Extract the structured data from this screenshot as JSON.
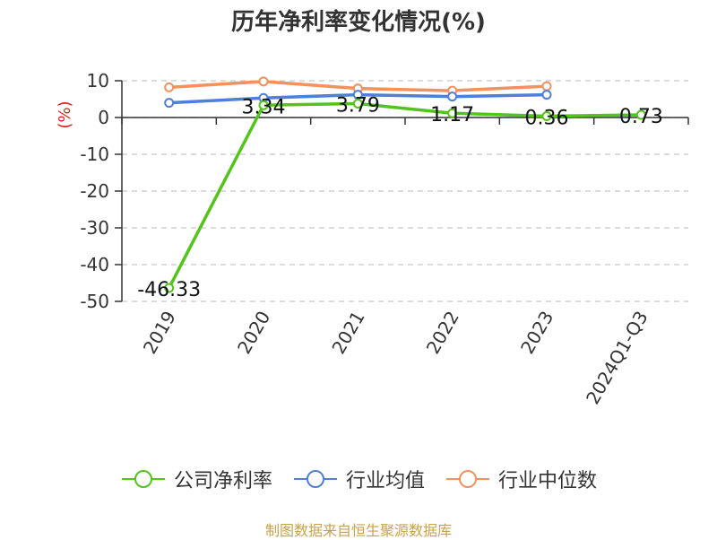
{
  "chart_data": {
    "type": "line",
    "title": "历年净利率变化情况(%)",
    "ylabel": "(%)",
    "categories": [
      "2019",
      "2020",
      "2021",
      "2022",
      "2023",
      "2024Q1-Q3"
    ],
    "yticks": [
      "10",
      "0",
      "-10",
      "-20",
      "-30",
      "-40",
      "-50"
    ],
    "ylim": [
      -50,
      10
    ],
    "grid": true,
    "legend_position": "bottom",
    "series": [
      {
        "name": "公司净利率",
        "color": "#52c41a",
        "values": [
          -46.33,
          3.34,
          3.79,
          1.17,
          0.36,
          0.73
        ],
        "labels": [
          "-46.33",
          "3.34",
          "3.79",
          "1.17",
          "0.36",
          "0.73"
        ]
      },
      {
        "name": "行业均值",
        "color": "#4e7fdc",
        "values": [
          4.0,
          5.3,
          6.2,
          5.7,
          6.2,
          null
        ]
      },
      {
        "name": "行业中位数",
        "color": "#f4915c",
        "values": [
          8.2,
          9.8,
          7.9,
          7.3,
          8.5,
          null
        ]
      }
    ],
    "source": "制图数据来自恒生聚源数据库"
  }
}
